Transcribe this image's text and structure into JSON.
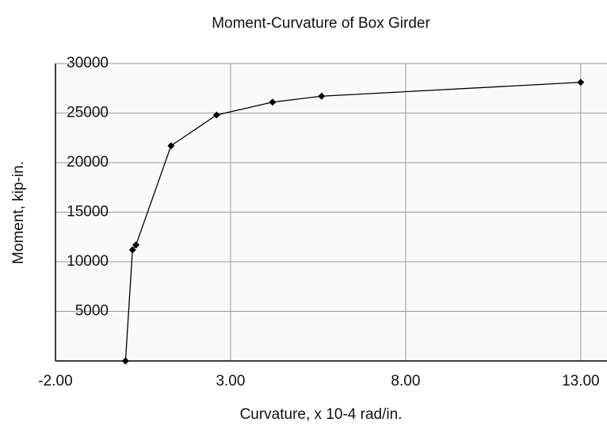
{
  "chart_data": {
    "type": "scatter-line",
    "title": "Moment-Curvature of Box Girder",
    "x_label": "Curvature, x 10-4 rad/in.",
    "y_label": "Moment, kip-in.",
    "x": [
      0,
      0.2,
      0.3,
      1.3,
      2.6,
      4.2,
      5.6,
      13
    ],
    "values": [
      0,
      11200,
      11700,
      21700,
      24800,
      26100,
      26700,
      28100
    ],
    "color": "#000000",
    "xlim": [
      -2,
      13.75
    ],
    "xticks": [
      {
        "value": -2,
        "label": "-2.00"
      },
      {
        "value": 3,
        "label": "3.00"
      },
      {
        "value": 8,
        "label": "8.00"
      },
      {
        "value": 13,
        "label": "13.00"
      }
    ],
    "ylim": [
      0,
      30000
    ],
    "yticks": [
      5000,
      10000,
      15000,
      20000,
      25000,
      30000
    ],
    "grid": true
  }
}
